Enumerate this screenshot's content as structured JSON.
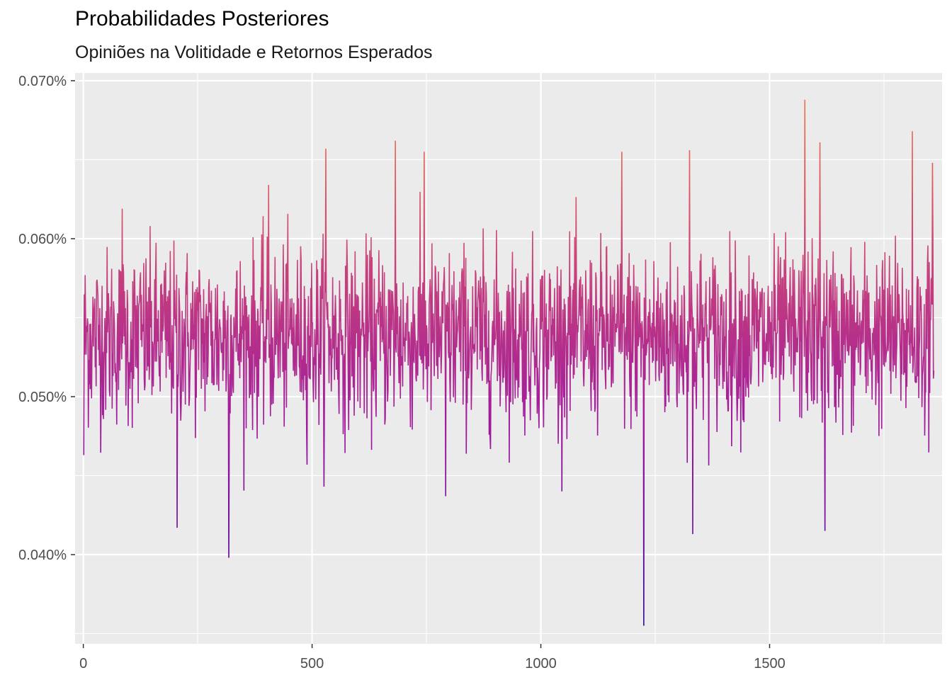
{
  "chart_data": {
    "type": "bar",
    "title": "Probabilidades Posteriores",
    "subtitle": "Opiniões na Volitidade e Retornos Esperados",
    "xlabel": "",
    "ylabel": "",
    "x_range": [
      1,
      1859
    ],
    "xlim": [
      -18,
      1877
    ],
    "ylim": [
      0.03435,
      0.07049
    ],
    "y_unit": "percent",
    "grid": true,
    "x_ticks": [
      0,
      500,
      1000,
      1500
    ],
    "x_tick_labels": [
      "0",
      "500",
      "1000",
      "1500"
    ],
    "y_ticks": [
      0.04,
      0.05,
      0.06,
      0.07
    ],
    "y_tick_labels": [
      "0.040%",
      "0.050%",
      "0.060%",
      "0.070%"
    ],
    "color_scale": {
      "low": "#3b049a",
      "mid": "#9c179e",
      "high": "#f0734a"
    },
    "baseline_mean": 0.0538,
    "typical_spread": 0.0028,
    "notable_values": [
      {
        "x": 1,
        "y": 0.0463
      },
      {
        "x": 85,
        "y": 0.0619
      },
      {
        "x": 205,
        "y": 0.0417
      },
      {
        "x": 318,
        "y": 0.0398
      },
      {
        "x": 405,
        "y": 0.0634
      },
      {
        "x": 530,
        "y": 0.0657
      },
      {
        "x": 682,
        "y": 0.0662
      },
      {
        "x": 745,
        "y": 0.0655
      },
      {
        "x": 792,
        "y": 0.0437
      },
      {
        "x": 1177,
        "y": 0.0655
      },
      {
        "x": 1225,
        "y": 0.0355
      },
      {
        "x": 1325,
        "y": 0.0656
      },
      {
        "x": 1332,
        "y": 0.0413
      },
      {
        "x": 1577,
        "y": 0.0688
      },
      {
        "x": 1610,
        "y": 0.0661
      },
      {
        "x": 1621,
        "y": 0.0415
      },
      {
        "x": 1812,
        "y": 0.0668
      },
      {
        "x": 1856,
        "y": 0.0648
      }
    ]
  }
}
